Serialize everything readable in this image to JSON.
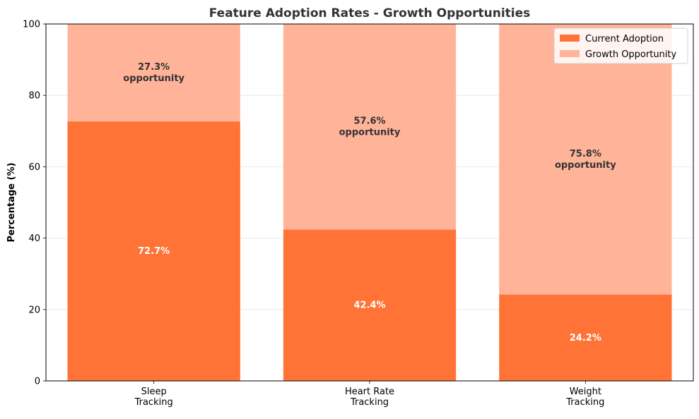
{
  "chart_data": {
    "type": "bar",
    "stacked": true,
    "title": "Feature Adoption Rates - Growth Opportunities",
    "xlabel": "",
    "ylabel": "Percentage (%)",
    "ylim": [
      0,
      100
    ],
    "yticks": [
      0,
      20,
      40,
      60,
      80,
      100
    ],
    "grid": true,
    "legend_position": "top-right",
    "categories": [
      "Sleep\nTracking",
      "Heart Rate\nTracking",
      "Weight\nTracking"
    ],
    "series": [
      {
        "name": "Current Adoption",
        "color": "#FF7337",
        "values": [
          72.7,
          42.4,
          24.2
        ],
        "labels": [
          "72.7%",
          "42.4%",
          "24.2%"
        ]
      },
      {
        "name": "Growth Opportunity",
        "color": "#FFB399",
        "values": [
          27.3,
          57.6,
          75.8
        ],
        "labels": [
          "27.3%\nopportunity",
          "57.6%\nopportunity",
          "75.8%\nopportunity"
        ]
      }
    ]
  }
}
